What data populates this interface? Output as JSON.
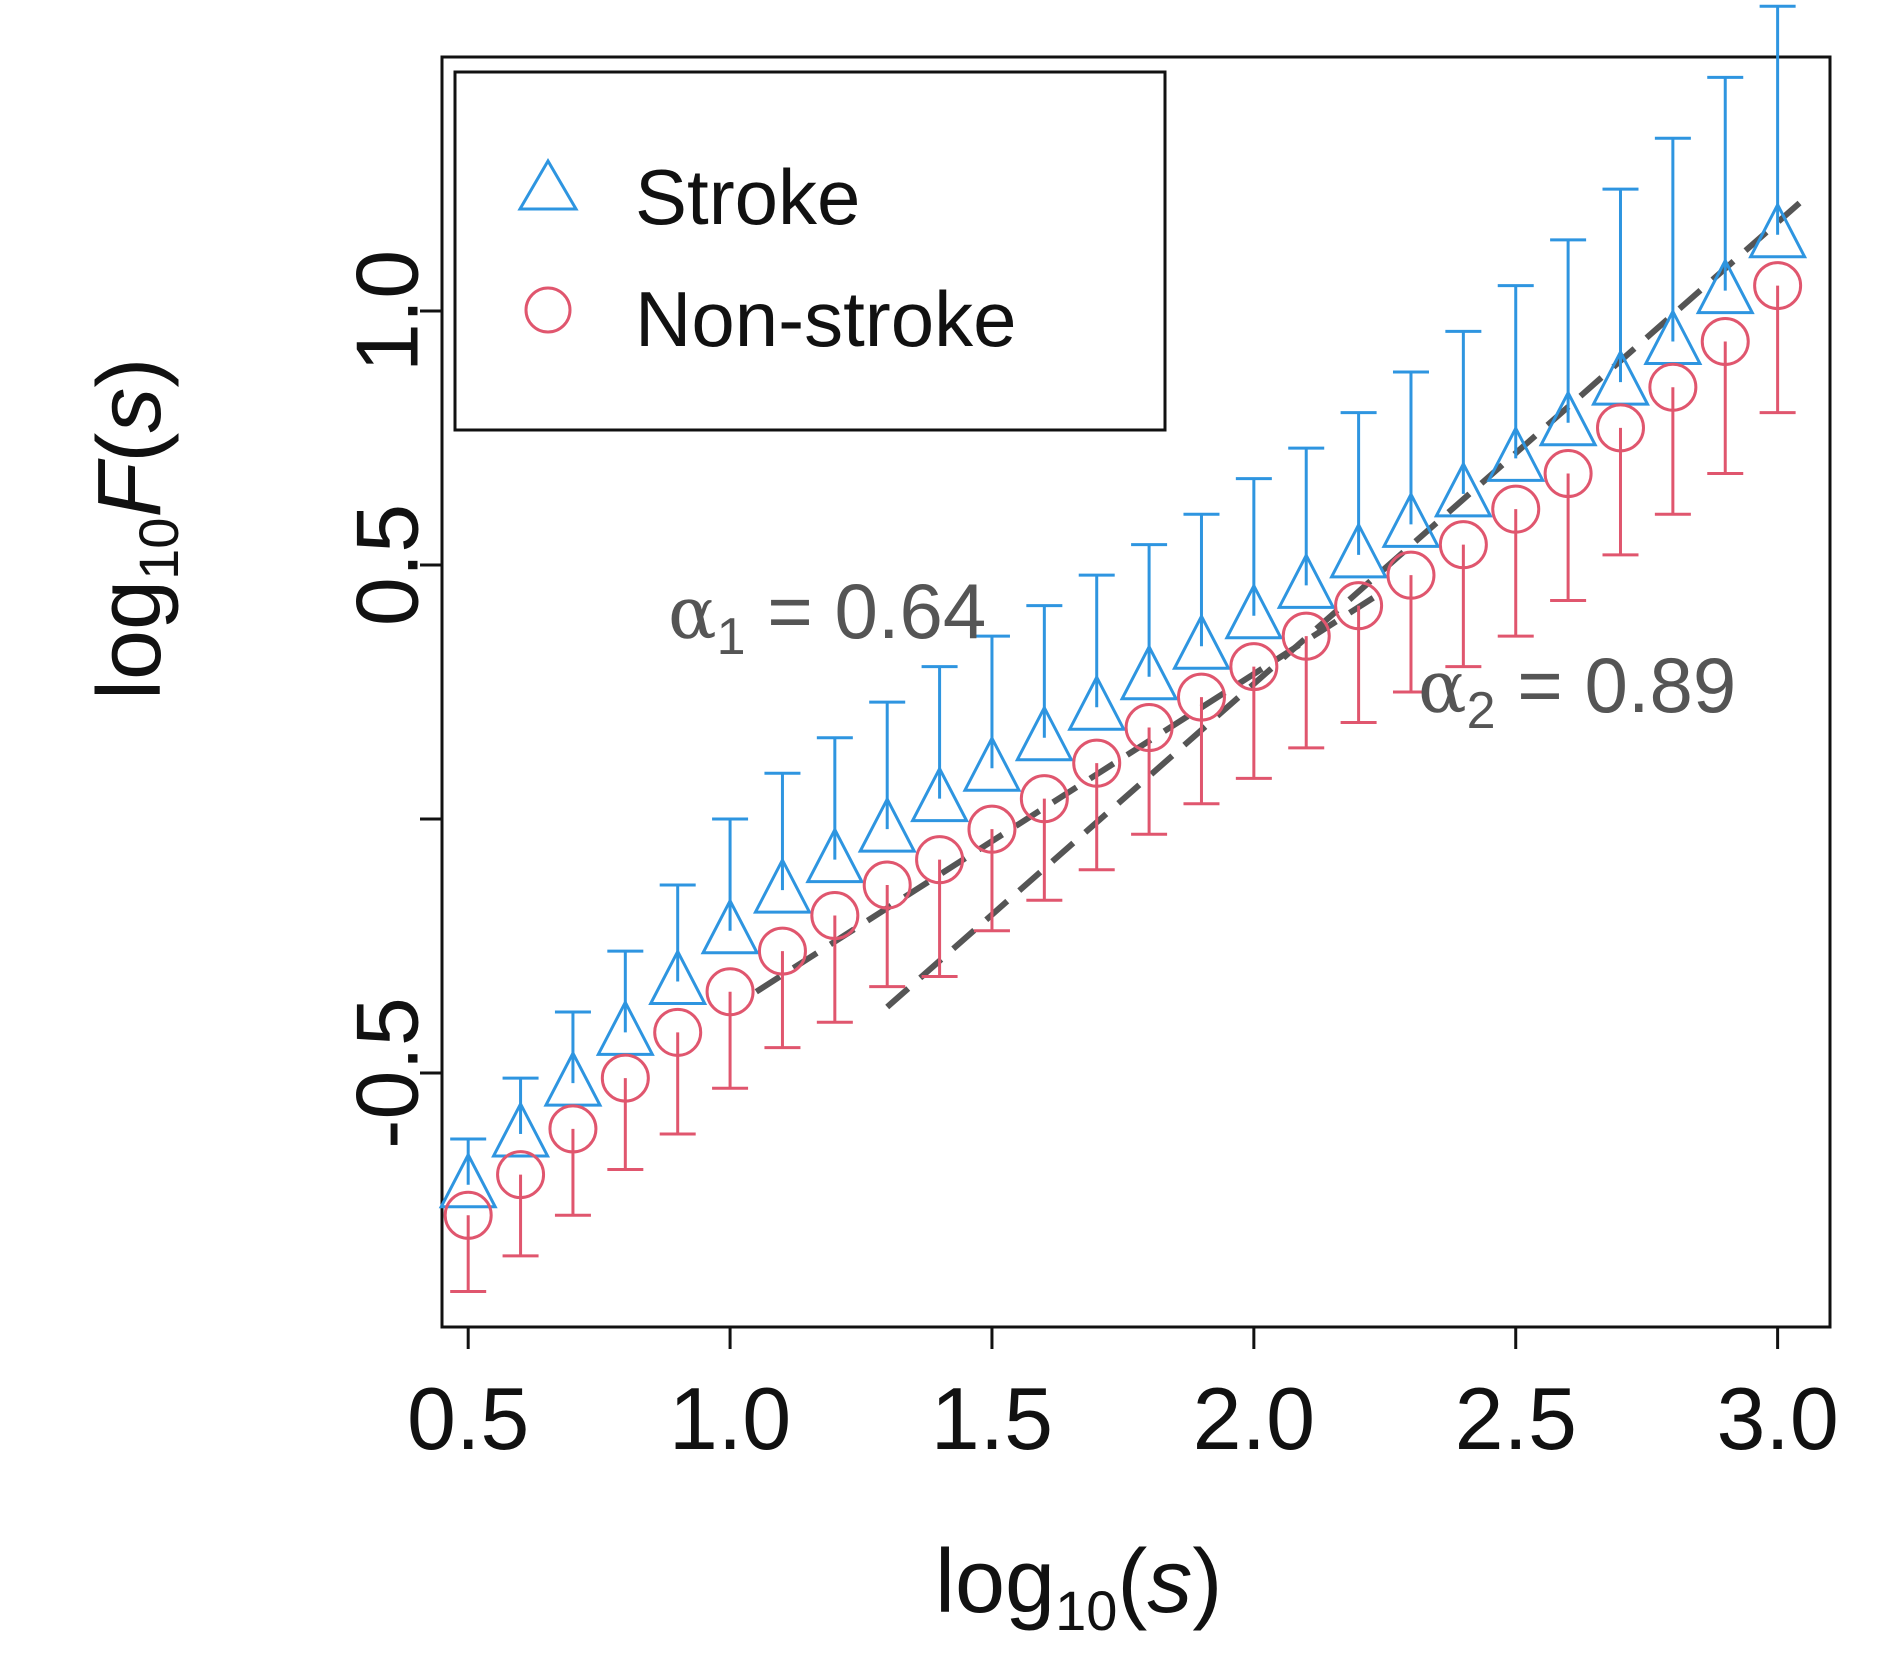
{
  "colors": {
    "stroke": "#2e95e0",
    "nonstroke": "#e0566e",
    "fit": "#555555",
    "axis": "#111111"
  },
  "chart_data": {
    "type": "scatter",
    "title": "",
    "xlabel": "log10(s)",
    "xlabel_parts": {
      "base": "log",
      "sub": "10",
      "open": "(",
      "var": "s",
      "close": ")"
    },
    "ylabel": "log10F(s)",
    "ylabel_parts": {
      "base": "log",
      "sub": "10",
      "fn": "F",
      "open": "(",
      "var": "s",
      "close": ")"
    },
    "xlim": [
      0.45,
      3.1
    ],
    "ylim": [
      -1.0,
      1.5
    ],
    "x_ticks": [
      0.5,
      1.0,
      1.5,
      2.0,
      2.5,
      3.0
    ],
    "x_tick_labels": [
      "0.5",
      "1.0",
      "1.5",
      "2.0",
      "2.5",
      "3.0"
    ],
    "y_ticks": [
      -0.5,
      0.0,
      0.5,
      1.0
    ],
    "y_tick_labels": [
      "-0.5",
      "",
      "0.5",
      "1.0"
    ],
    "x": [
      0.5,
      0.6,
      0.7,
      0.8,
      0.9,
      1.0,
      1.1,
      1.2,
      1.3,
      1.4,
      1.5,
      1.6,
      1.7,
      1.8,
      1.9,
      2.0,
      2.1,
      2.2,
      2.3,
      2.4,
      2.5,
      2.6,
      2.7,
      2.8,
      2.9,
      3.0
    ],
    "series": [
      {
        "name": "Stroke",
        "marker": "triangle",
        "values": [
          -0.72,
          -0.62,
          -0.52,
          -0.42,
          -0.32,
          -0.22,
          -0.14,
          -0.08,
          -0.02,
          0.04,
          0.1,
          0.16,
          0.22,
          0.28,
          0.34,
          0.4,
          0.46,
          0.52,
          0.58,
          0.64,
          0.71,
          0.78,
          0.86,
          0.94,
          1.04,
          1.15
        ],
        "err_upper": [
          0.09,
          0.11,
          0.14,
          0.16,
          0.19,
          0.22,
          0.23,
          0.24,
          0.25,
          0.26,
          0.26,
          0.26,
          0.26,
          0.26,
          0.26,
          0.27,
          0.27,
          0.28,
          0.3,
          0.32,
          0.34,
          0.36,
          0.38,
          0.4,
          0.42,
          0.45
        ]
      },
      {
        "name": "Non-stroke",
        "marker": "circle",
        "values": [
          -0.78,
          -0.7,
          -0.61,
          -0.51,
          -0.42,
          -0.34,
          -0.26,
          -0.19,
          -0.13,
          -0.08,
          -0.02,
          0.04,
          0.11,
          0.18,
          0.24,
          0.3,
          0.36,
          0.42,
          0.48,
          0.54,
          0.61,
          0.68,
          0.77,
          0.85,
          0.94,
          1.05
        ],
        "err_lower": [
          0.15,
          0.16,
          0.17,
          0.18,
          0.2,
          0.19,
          0.19,
          0.21,
          0.2,
          0.23,
          0.2,
          0.2,
          0.21,
          0.21,
          0.21,
          0.22,
          0.22,
          0.23,
          0.23,
          0.24,
          0.25,
          0.25,
          0.25,
          0.25,
          0.26,
          0.25
        ]
      }
    ],
    "fit_lines": [
      {
        "name": "alpha1",
        "label_symbol": "α",
        "label_sub": "1",
        "label_eq": " = 0.64",
        "from": [
          1.05,
          -0.34
        ],
        "to": [
          2.25,
          0.45
        ]
      },
      {
        "name": "alpha2",
        "label_symbol": "α",
        "label_sub": "2",
        "label_eq": " = 0.89",
        "from": [
          1.3,
          -0.37
        ],
        "to": [
          3.05,
          1.22
        ]
      }
    ],
    "legend": {
      "position": "top-left",
      "entries": [
        "Stroke",
        "Non-stroke"
      ]
    }
  }
}
